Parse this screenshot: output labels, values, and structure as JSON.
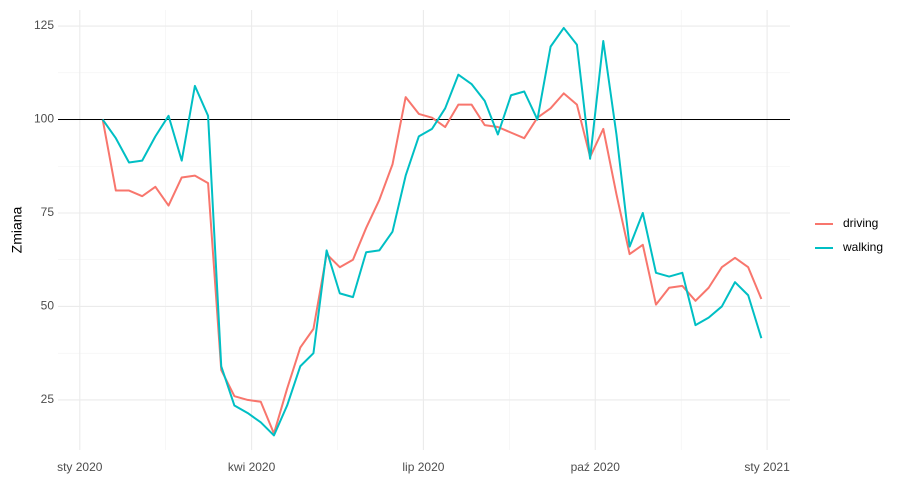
{
  "chart_data": {
    "type": "line",
    "y_label": "Zmiana",
    "x": [
      0.4,
      0.63,
      0.86,
      1.09,
      1.32,
      1.55,
      1.78,
      2.01,
      2.24,
      2.47,
      2.7,
      2.93,
      3.16,
      3.39,
      3.62,
      3.85,
      4.08,
      4.31,
      4.54,
      4.77,
      5.0,
      5.23,
      5.46,
      5.69,
      5.92,
      6.15,
      6.38,
      6.61,
      6.84,
      7.07,
      7.3,
      7.53,
      7.76,
      7.99,
      8.22,
      8.45,
      8.68,
      8.91,
      9.14,
      9.37,
      9.6,
      9.83,
      10.06,
      10.29,
      10.52,
      10.75,
      10.98,
      11.21,
      11.44,
      11.67,
      11.9
    ],
    "series": [
      {
        "name": "driving",
        "color": "#F8766D",
        "values": [
          100,
          81,
          81,
          79.5,
          82,
          77,
          84.5,
          85,
          83,
          33,
          26,
          25,
          24.5,
          16,
          28,
          39,
          44,
          64,
          60.5,
          62.5,
          71,
          78.5,
          88,
          106,
          101.5,
          100.5,
          98,
          104,
          104,
          98.5,
          98,
          96.5,
          95,
          100.5,
          103,
          107,
          104,
          90,
          97.5,
          80,
          64,
          66.5,
          50.5,
          55,
          55.5,
          51.5,
          55,
          60.5,
          63,
          60.5,
          52
        ]
      },
      {
        "name": "walking",
        "color": "#00BFC4",
        "values": [
          100,
          95,
          88.5,
          89,
          95.5,
          101,
          89,
          109,
          101,
          34,
          23.5,
          21.5,
          19,
          15.5,
          23.5,
          34,
          37.5,
          65,
          53.5,
          52.5,
          64.5,
          65,
          70,
          85,
          95.5,
          97.5,
          103,
          112,
          109.5,
          105,
          96,
          106.5,
          107.5,
          100,
          119.5,
          124.5,
          120,
          89.5,
          121,
          96,
          66,
          75,
          59,
          58,
          59,
          45,
          47,
          50,
          56.5,
          53,
          41.5
        ]
      }
    ],
    "hline": 100,
    "xlim": [
      -0.38,
      12.4
    ],
    "xticks": [
      {
        "value": 0,
        "label": "sty 2020"
      },
      {
        "value": 3,
        "label": "kwi 2020"
      },
      {
        "value": 6,
        "label": "lip 2020"
      },
      {
        "value": 9,
        "label": "paź 2020"
      },
      {
        "value": 12,
        "label": "sty 2021"
      }
    ],
    "ylim": [
      11.6,
      129.3
    ],
    "yticks": [
      25,
      50,
      75,
      100,
      125
    ],
    "grid": true,
    "legend": "right"
  }
}
